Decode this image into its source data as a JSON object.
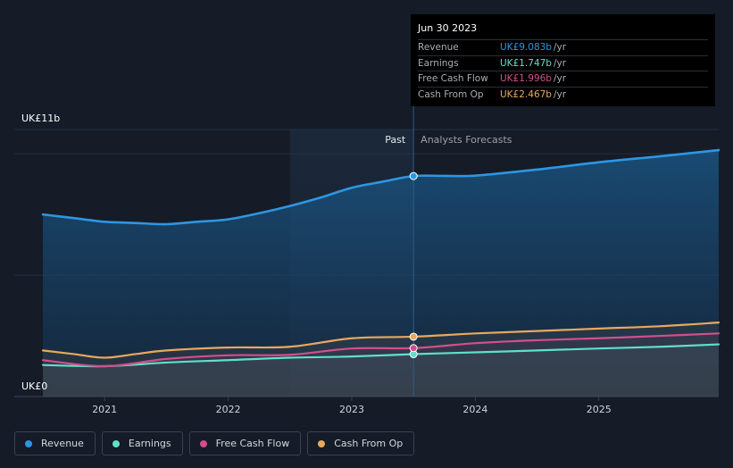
{
  "chart_data": {
    "type": "line",
    "y_axis": {
      "top_label": "UK£11b",
      "bottom_label": "UK£0",
      "ylim": [
        0,
        11
      ]
    },
    "x_axis": {
      "tick_labels": [
        "2021",
        "2022",
        "2023",
        "2024",
        "2025"
      ],
      "xlim": [
        2020.5,
        2025.97
      ]
    },
    "regions": {
      "past_label": "Past",
      "forecast_label": "Analysts Forecasts",
      "divider_x": 2023.5,
      "highlight_start_x": 2022.5
    },
    "series": [
      {
        "name": "Revenue",
        "color": "#2d96e3",
        "x": [
          2020.5,
          2020.75,
          2021.0,
          2021.25,
          2021.5,
          2021.75,
          2022.0,
          2022.25,
          2022.5,
          2022.75,
          2023.0,
          2023.25,
          2023.5,
          2023.75,
          2024.0,
          2024.5,
          2025.0,
          2025.5,
          2025.97
        ],
        "values": [
          7.5,
          7.35,
          7.2,
          7.15,
          7.1,
          7.2,
          7.3,
          7.55,
          7.85,
          8.2,
          8.6,
          8.85,
          9.083,
          9.09,
          9.1,
          9.35,
          9.65,
          9.9,
          10.15
        ]
      },
      {
        "name": "Earnings",
        "color": "#5ee0c9",
        "x": [
          2020.5,
          2021.0,
          2021.5,
          2022.0,
          2022.5,
          2023.0,
          2023.5,
          2024.0,
          2024.5,
          2025.0,
          2025.5,
          2025.97
        ],
        "values": [
          1.3,
          1.25,
          1.4,
          1.5,
          1.6,
          1.65,
          1.747,
          1.82,
          1.9,
          1.98,
          2.05,
          2.15
        ]
      },
      {
        "name": "Free Cash Flow",
        "color": "#d0508a",
        "x": [
          2020.5,
          2021.0,
          2021.5,
          2022.0,
          2022.5,
          2023.0,
          2023.5,
          2024.0,
          2024.5,
          2025.0,
          2025.5,
          2025.97
        ],
        "values": [
          1.5,
          1.25,
          1.55,
          1.7,
          1.72,
          1.98,
          1.996,
          2.2,
          2.32,
          2.4,
          2.5,
          2.6
        ]
      },
      {
        "name": "Cash From Op",
        "color": "#e8a95c",
        "x": [
          2020.5,
          2020.75,
          2021.0,
          2021.25,
          2021.5,
          2022.0,
          2022.5,
          2023.0,
          2023.5,
          2024.0,
          2024.5,
          2025.0,
          2025.5,
          2025.97
        ],
        "values": [
          1.9,
          1.75,
          1.6,
          1.75,
          1.9,
          2.02,
          2.05,
          2.4,
          2.467,
          2.6,
          2.7,
          2.8,
          2.9,
          3.05
        ]
      }
    ],
    "legend": [
      "Revenue",
      "Earnings",
      "Free Cash Flow",
      "Cash From Op"
    ],
    "grid": true
  },
  "tooltip": {
    "date": "Jun 30 2023",
    "rows": [
      {
        "label": "Revenue",
        "value": "UK£9.083b",
        "unit": "/yr",
        "color": "#2d96e3"
      },
      {
        "label": "Earnings",
        "value": "UK£1.747b",
        "unit": "/yr",
        "color": "#5ee0c9"
      },
      {
        "label": "Free Cash Flow",
        "value": "UK£1.996b",
        "unit": "/yr",
        "color": "#d0508a"
      },
      {
        "label": "Cash From Op",
        "value": "UK£2.467b",
        "unit": "/yr",
        "color": "#e8a95c"
      }
    ]
  },
  "legend_items": [
    {
      "label": "Revenue",
      "color": "#2d96e3"
    },
    {
      "label": "Earnings",
      "color": "#5ee0c9"
    },
    {
      "label": "Free Cash Flow",
      "color": "#d0508a"
    },
    {
      "label": "Cash From Op",
      "color": "#e8a95c"
    }
  ]
}
